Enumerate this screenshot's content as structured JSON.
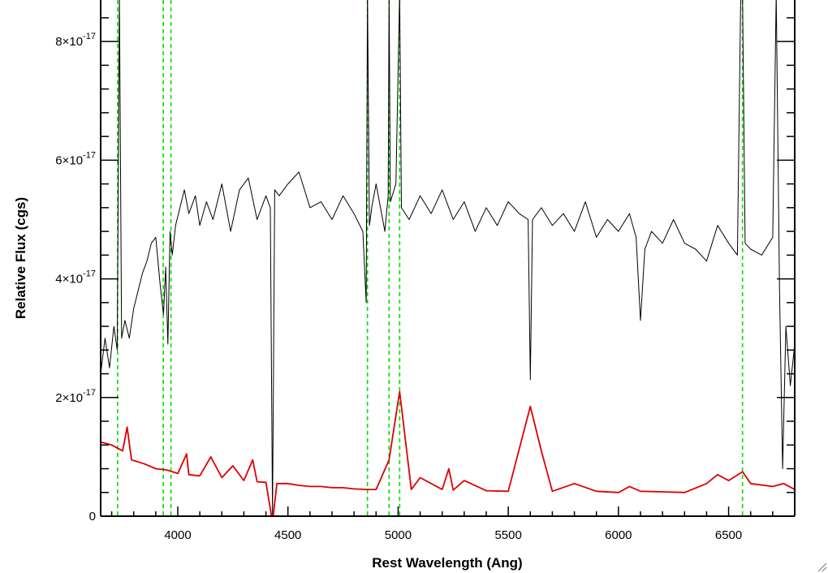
{
  "chart_data": {
    "type": "line",
    "title": "",
    "xlabel": "Rest Wavelength (Ang)",
    "ylabel": "Relative Flux (cgs)",
    "xlim": [
      3650,
      6800
    ],
    "ylim": [
      0,
      8.7e-17
    ],
    "x_ticks": [
      {
        "value": 4000,
        "label": "4000"
      },
      {
        "value": 4500,
        "label": "4500"
      },
      {
        "value": 5000,
        "label": "5000"
      },
      {
        "value": 5500,
        "label": "5500"
      },
      {
        "value": 6000,
        "label": "6000"
      },
      {
        "value": 6500,
        "label": "6500"
      }
    ],
    "y_ticks": [
      {
        "value": 0,
        "mantissa": "0",
        "exponent": ""
      },
      {
        "value": 2e-17,
        "mantissa": "2×10",
        "exponent": "-17"
      },
      {
        "value": 4e-17,
        "mantissa": "4×10",
        "exponent": "-17"
      },
      {
        "value": 6e-17,
        "mantissa": "6×10",
        "exponent": "-17"
      },
      {
        "value": 8e-17,
        "mantissa": "8×10",
        "exponent": "-17"
      }
    ],
    "grid": false,
    "series": [
      {
        "color": "#000000",
        "x": [
          3650,
          3670,
          3690,
          3710,
          3725,
          3735,
          3745,
          3760,
          3780,
          3800,
          3820,
          3840,
          3860,
          3880,
          3900,
          3920,
          3935,
          3945,
          3955,
          3965,
          3975,
          3990,
          4010,
          4030,
          4050,
          4080,
          4100,
          4130,
          4160,
          4200,
          4240,
          4280,
          4320,
          4360,
          4400,
          4420,
          4430,
          4440,
          4460,
          4500,
          4550,
          4600,
          4650,
          4700,
          4750,
          4800,
          4840,
          4855,
          4861,
          4870,
          4880,
          4900,
          4940,
          4955,
          4959,
          4965,
          4990,
          5007,
          5015,
          5050,
          5100,
          5150,
          5200,
          5250,
          5300,
          5350,
          5400,
          5450,
          5500,
          5550,
          5590,
          5600,
          5610,
          5650,
          5700,
          5750,
          5800,
          5850,
          5900,
          5950,
          6000,
          6050,
          6080,
          6100,
          6120,
          6150,
          6200,
          6250,
          6300,
          6350,
          6400,
          6450,
          6500,
          6540,
          6555,
          6563,
          6575,
          6600,
          6650,
          6700,
          6716,
          6731,
          6745,
          6760,
          6780,
          6800
        ],
        "y": [
          2.4e-17,
          3e-17,
          2.5e-17,
          3.2e-17,
          2.8e-17,
          8.8e-17,
          3e-17,
          3.3e-17,
          3e-17,
          3.5e-17,
          3.8e-17,
          4.1e-17,
          4.3e-17,
          4.6e-17,
          4.7e-17,
          3.9e-17,
          3.4e-17,
          4.2e-17,
          2.9e-17,
          4.8e-17,
          4.4e-17,
          4.9e-17,
          5.2e-17,
          5.5e-17,
          5.1e-17,
          5.4e-17,
          4.9e-17,
          5.3e-17,
          5e-17,
          5.6e-17,
          4.8e-17,
          5.5e-17,
          5.7e-17,
          5e-17,
          5.4e-17,
          5.2e-17,
          0.0,
          5.5e-17,
          5.4e-17,
          5.6e-17,
          5.8e-17,
          5.2e-17,
          5.3e-17,
          5e-17,
          5.4e-17,
          5.1e-17,
          4.8e-17,
          3.6e-17,
          8.8e-17,
          4.9e-17,
          5.2e-17,
          5.6e-17,
          4.8e-17,
          5.4e-17,
          8.8e-17,
          5.3e-17,
          5.6e-17,
          8.8e-17,
          5.2e-17,
          5e-17,
          5.4e-17,
          5.1e-17,
          5.5e-17,
          5e-17,
          5.3e-17,
          4.8e-17,
          5.2e-17,
          4.9e-17,
          5.3e-17,
          5.1e-17,
          5e-17,
          2.3e-17,
          5e-17,
          5.2e-17,
          4.9e-17,
          5.1e-17,
          4.8e-17,
          5.3e-17,
          4.7e-17,
          5e-17,
          4.8e-17,
          5.1e-17,
          4.7e-17,
          3.3e-17,
          4.5e-17,
          4.8e-17,
          4.6e-17,
          5e-17,
          4.6e-17,
          4.5e-17,
          4.3e-17,
          4.9e-17,
          4.6e-17,
          4.4e-17,
          8.8e-17,
          8.8e-17,
          4.6e-17,
          4.5e-17,
          4.4e-17,
          4.7e-17,
          8.8e-17,
          3.8e-17,
          8e-18,
          3.2e-17,
          2.2e-17,
          2.9e-17
        ]
      },
      {
        "color": "#dd0000",
        "x": [
          3650,
          3700,
          3750,
          3770,
          3790,
          3850,
          3900,
          3950,
          4000,
          4040,
          4050,
          4100,
          4150,
          4200,
          4250,
          4300,
          4340,
          4360,
          4400,
          4430,
          4450,
          4500,
          4550,
          4600,
          4650,
          4700,
          4750,
          4800,
          4861,
          4900,
          4959,
          5007,
          5060,
          5100,
          5200,
          5230,
          5250,
          5300,
          5400,
          5500,
          5600,
          5650,
          5700,
          5800,
          5900,
          6000,
          6050,
          6100,
          6200,
          6300,
          6400,
          6450,
          6500,
          6563,
          6600,
          6700,
          6750,
          6800
        ],
        "y": [
          1.25e-17,
          1.2e-17,
          1.1e-17,
          1.5e-17,
          9.5e-18,
          8.8e-18,
          8e-18,
          7.8e-18,
          7.2e-18,
          1.05e-17,
          7e-18,
          6.8e-18,
          1e-17,
          6.5e-18,
          8.5e-18,
          6e-18,
          9.5e-18,
          5.8e-18,
          5.7e-18,
          -1e-18,
          5.5e-18,
          5.5e-18,
          5.2e-18,
          5e-18,
          5e-18,
          4.8e-18,
          4.8e-18,
          4.6e-18,
          4.5e-18,
          4.5e-18,
          9.5e-18,
          2.1e-17,
          4.5e-18,
          6.5e-18,
          4.5e-18,
          8e-18,
          4.4e-18,
          6e-18,
          4.3e-18,
          4.2e-18,
          1.85e-17,
          1.1e-17,
          4.2e-18,
          5.5e-18,
          4.2e-18,
          4e-18,
          5e-18,
          4.2e-18,
          4.1e-18,
          4e-18,
          5.5e-18,
          7e-18,
          6e-18,
          7.5e-18,
          5.5e-18,
          5e-18,
          5.5e-18,
          4.5e-18
        ]
      }
    ],
    "vertical_lines": {
      "color": "#00dd00",
      "style": "dashed",
      "x": [
        3727,
        3934,
        3969,
        4861,
        4959,
        5007,
        6563
      ]
    }
  }
}
